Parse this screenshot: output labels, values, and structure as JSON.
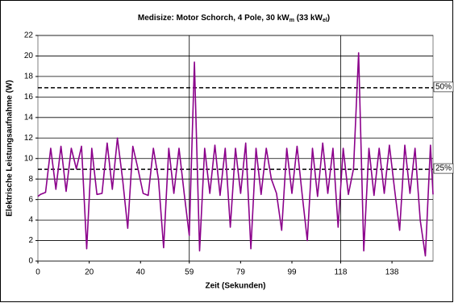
{
  "chart_data": {
    "type": "line",
    "title": [
      "Medisize: Motor Schorch, 4 Pole, 30 kW",
      "m",
      " (33 kW",
      "el",
      ")"
    ],
    "x_label": "Zeit (Sekunden)",
    "y_label": "Elektrische Leistungsaufnahme (W)",
    "x": [
      0,
      1,
      3,
      5,
      7,
      9,
      11,
      13,
      15,
      17,
      19,
      21,
      23,
      25,
      27,
      29,
      31,
      33,
      35,
      37,
      39,
      41,
      43,
      45,
      47,
      49,
      51,
      53,
      55,
      57,
      59,
      61,
      63,
      65,
      67,
      69,
      71,
      73,
      75,
      77,
      79,
      81,
      83,
      85,
      87,
      89,
      91,
      93,
      95,
      97,
      99,
      101,
      103,
      105,
      107,
      109,
      111,
      113,
      115,
      117,
      119,
      121,
      123,
      125,
      127,
      129,
      131,
      133,
      135,
      137,
      139,
      141,
      143,
      145,
      147,
      149,
      151,
      153,
      154
    ],
    "series": [
      {
        "color": "#8b008b",
        "values": [
          6.3,
          6.5,
          6.7,
          11,
          7,
          11.2,
          6.8,
          11,
          9,
          11.2,
          1.2,
          11,
          6.5,
          6.6,
          11.5,
          7,
          12,
          8,
          3.2,
          11.2,
          9,
          6.6,
          6.4,
          11,
          8,
          1.3,
          11,
          6.6,
          11,
          6.6,
          2.5,
          19.4,
          1,
          11,
          6.6,
          11.3,
          6.4,
          11,
          3.3,
          11,
          6.6,
          11.5,
          1.2,
          11,
          6.5,
          11,
          8,
          6.6,
          3,
          11,
          6.6,
          11.2,
          6.5,
          2,
          11,
          6.3,
          11.5,
          6.6,
          11,
          3.3,
          11,
          6.5,
          9,
          20.3,
          1,
          11,
          6.4,
          11,
          6.6,
          11.3,
          7,
          3,
          11.3,
          6.6,
          11,
          4,
          0.5,
          11.3,
          6.5
        ]
      }
    ],
    "xlim": [
      0,
      154
    ],
    "xticks": [
      0,
      20,
      40,
      59,
      79,
      99,
      118,
      138
    ],
    "vlines": [
      59,
      118
    ],
    "ylim": [
      0,
      22
    ],
    "yticks": [
      0,
      2,
      4,
      6,
      8,
      10,
      12,
      14,
      16,
      18,
      20,
      22
    ],
    "grid": true,
    "reference_lines": [
      {
        "value": 16.9,
        "label": "50%"
      },
      {
        "value": 8.95,
        "label": "25%"
      }
    ]
  }
}
